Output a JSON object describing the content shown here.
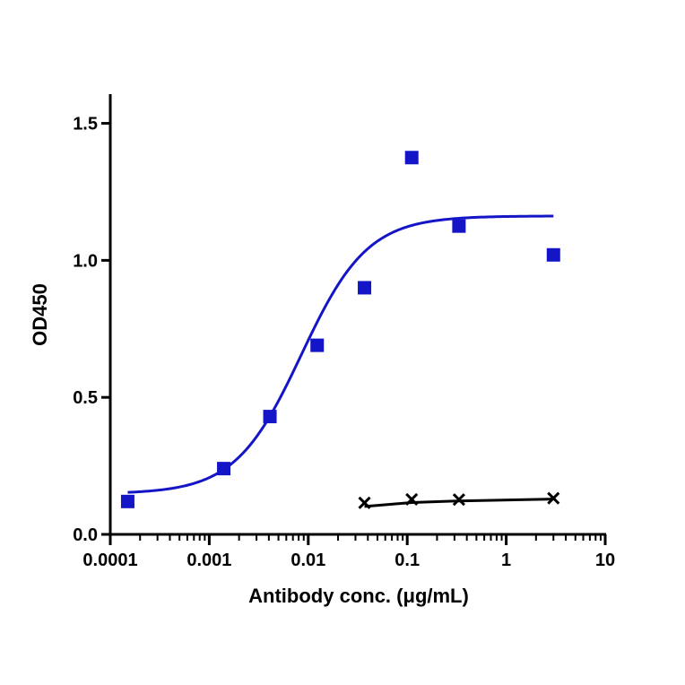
{
  "chart_data": {
    "type": "scatter",
    "xlabel": "Antibody conc. (μg/mL)",
    "ylabel": "OD450",
    "x_scale": "log",
    "xlim": [
      0.0001,
      10
    ],
    "ylim": [
      0,
      1.6
    ],
    "x_ticks": [
      {
        "value": 0.0001,
        "label": "0.0001"
      },
      {
        "value": 0.001,
        "label": "0.001"
      },
      {
        "value": 0.01,
        "label": "0.01"
      },
      {
        "value": 0.1,
        "label": "0.1"
      },
      {
        "value": 1,
        "label": "1"
      },
      {
        "value": 10,
        "label": "10"
      }
    ],
    "y_ticks": [
      {
        "value": 0,
        "label": "0.0"
      },
      {
        "value": 0.5,
        "label": "0.5"
      },
      {
        "value": 1.0,
        "label": "1.0"
      },
      {
        "value": 1.5,
        "label": "1.5"
      }
    ],
    "grid": false,
    "legend": false,
    "series": [
      {
        "marker": "square",
        "color": "#1515c8",
        "x": [
          0.00015,
          0.0014,
          0.0041,
          0.0123,
          0.037,
          0.111,
          0.333,
          3.0
        ],
        "y": [
          0.12,
          0.24,
          0.43,
          0.69,
          0.9,
          1.375,
          1.125,
          1.02
        ],
        "fit": {
          "model": "4PL",
          "bottom": 0.148,
          "top": 1.162,
          "ec50": 0.0085,
          "hill": 1.3,
          "x_range": [
            0.00015,
            3.0
          ]
        }
      },
      {
        "marker": "x",
        "color": "#000000",
        "x": [
          0.037,
          0.111,
          0.333,
          3.0
        ],
        "y": [
          0.115,
          0.128,
          0.127,
          0.132
        ],
        "fit": {
          "points": [
            [
              0.037,
              0.102
            ],
            [
              0.111,
              0.116
            ],
            [
              0.333,
              0.122
            ],
            [
              3.0,
              0.129
            ]
          ]
        }
      }
    ]
  }
}
